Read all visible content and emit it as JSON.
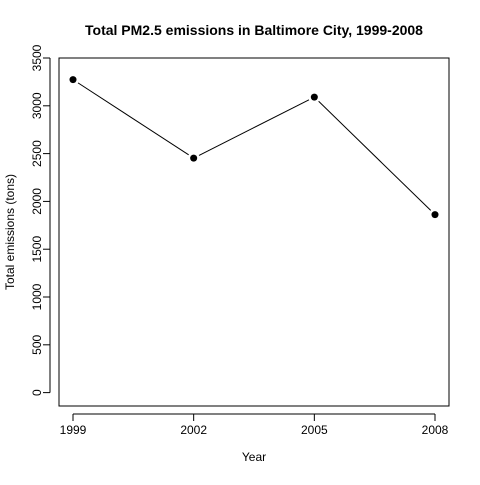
{
  "chart_data": {
    "type": "line",
    "title": "Total PM2.5 emissions in Baltimore City, 1999-2008",
    "xlabel": "Year",
    "ylabel": "Total emissions (tons)",
    "x": [
      1999,
      2002,
      2005,
      2008
    ],
    "y": [
      3274,
      2453,
      3091,
      1862
    ],
    "xticks": [
      "1999",
      "2002",
      "2005",
      "2008"
    ],
    "yticks": [
      "0",
      "500",
      "1000",
      "1500",
      "2000",
      "2500",
      "3000",
      "3500"
    ],
    "ylim": [
      -140,
      3500
    ],
    "grid": false,
    "marker": "filled-circle",
    "line_color": "#000000"
  }
}
